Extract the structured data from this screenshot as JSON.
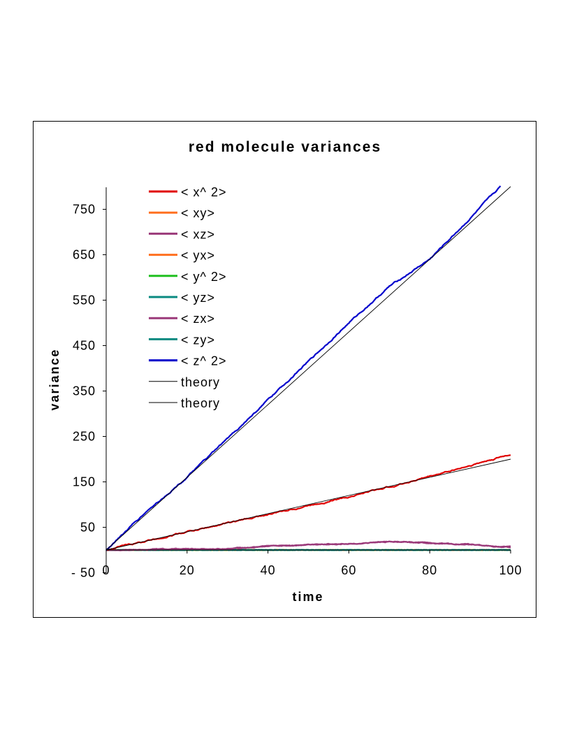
{
  "chart_data": {
    "type": "line",
    "title": "red molecule variances",
    "xlabel": "time",
    "ylabel": "variance",
    "xlim": [
      0,
      100
    ],
    "ylim": [
      -50,
      800
    ],
    "x_ticks": [
      0,
      20,
      40,
      60,
      80,
      100
    ],
    "y_ticks": [
      -50,
      50,
      150,
      250,
      350,
      450,
      550,
      650,
      750
    ],
    "x_tick_labels": [
      "0",
      "20",
      "40",
      "60",
      "80",
      "100"
    ],
    "y_tick_labels": [
      "- 50",
      "50",
      "150",
      "250",
      "350",
      "450",
      "550",
      "650",
      "750"
    ],
    "grid": false,
    "legend_position": "top-left",
    "series": [
      {
        "name": "< x^ 2>",
        "color": "#e00000",
        "style": "noisy",
        "x": [
          0,
          10,
          20,
          30,
          40,
          50,
          60,
          70,
          80,
          90,
          100
        ],
        "values": [
          0,
          20,
          40,
          59,
          78,
          98,
          118,
          139,
          162,
          186,
          210
        ]
      },
      {
        "name": "< xy>",
        "color": "#ff7020",
        "style": "noisy",
        "x": [
          0,
          20,
          40,
          60,
          80,
          100
        ],
        "values": [
          0,
          0,
          0,
          0,
          0,
          0
        ]
      },
      {
        "name": "< xz>",
        "color": "#9b3a7a",
        "style": "noisy",
        "x": [
          0,
          10,
          20,
          30,
          40,
          50,
          60,
          70,
          80,
          90,
          100
        ],
        "values": [
          0,
          1,
          2,
          3,
          8,
          12,
          14,
          18,
          16,
          12,
          6
        ]
      },
      {
        "name": "< yx>",
        "color": "#ff7020",
        "style": "noisy",
        "x": [
          0,
          20,
          40,
          60,
          80,
          100
        ],
        "values": [
          0,
          0,
          0,
          0,
          0,
          0
        ]
      },
      {
        "name": "< y^ 2>",
        "color": "#20c020",
        "style": "noisy",
        "x": [
          0,
          20,
          40,
          60,
          80,
          100
        ],
        "values": [
          0,
          0,
          0,
          0,
          0,
          0
        ]
      },
      {
        "name": "< yz>",
        "color": "#0a8a80",
        "style": "noisy",
        "x": [
          0,
          20,
          40,
          60,
          80,
          100
        ],
        "values": [
          0,
          0,
          0,
          0,
          0,
          0
        ]
      },
      {
        "name": "< zx>",
        "color": "#9b3a7a",
        "style": "noisy",
        "x": [
          0,
          10,
          20,
          30,
          40,
          50,
          60,
          70,
          80,
          90,
          100
        ],
        "values": [
          0,
          1,
          2,
          3,
          8,
          12,
          14,
          18,
          16,
          12,
          6
        ]
      },
      {
        "name": "< zy>",
        "color": "#0a8a80",
        "style": "noisy",
        "x": [
          0,
          20,
          40,
          60,
          80,
          100
        ],
        "values": [
          0,
          0,
          0,
          0,
          0,
          0
        ]
      },
      {
        "name": "< z^ 2>",
        "color": "#0000cc",
        "style": "noisy",
        "x": [
          0,
          10,
          20,
          30,
          40,
          50,
          60,
          70,
          80,
          90,
          97.5
        ],
        "values": [
          0,
          85,
          160,
          245,
          330,
          415,
          500,
          580,
          640,
          730,
          800
        ]
      },
      {
        "name": "theory",
        "color": "#000000",
        "style": "thin",
        "x": [
          0,
          100
        ],
        "values": [
          0,
          800
        ]
      },
      {
        "name": "theory",
        "color": "#000000",
        "style": "thin",
        "x": [
          0,
          100
        ],
        "values": [
          0,
          200
        ]
      }
    ]
  }
}
